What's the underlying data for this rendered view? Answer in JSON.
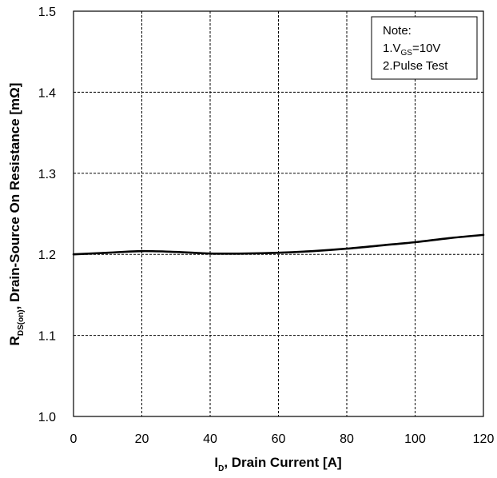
{
  "chart_data": {
    "type": "line",
    "xlabel": {
      "main": "I",
      "sub": "D",
      "rest": ", Drain Current [A]"
    },
    "ylabel": {
      "main": "R",
      "sub": "DS(on)",
      "rest": ", Drain-Source On Resistance [mΩ]"
    },
    "xlim": [
      0,
      120
    ],
    "ylim": [
      1.0,
      1.5
    ],
    "xticks": [
      0,
      20,
      40,
      60,
      80,
      100,
      120
    ],
    "yticks": [
      "1.0",
      "1.1",
      "1.2",
      "1.3",
      "1.4",
      "1.5"
    ],
    "grid": true,
    "grid_style": "dashed",
    "series": [
      {
        "x": [
          0,
          10,
          20,
          30,
          40,
          50,
          60,
          70,
          80,
          90,
          100,
          110,
          120
        ],
        "y": [
          1.2,
          1.202,
          1.204,
          1.203,
          1.201,
          1.201,
          1.202,
          1.204,
          1.207,
          1.211,
          1.215,
          1.22,
          1.224
        ],
        "color": "#000000"
      }
    ],
    "annotation": {
      "lines": [
        {
          "text": "Note:"
        },
        {
          "main": "1.V",
          "sub": "GS",
          "rest": "=10V"
        },
        {
          "text": "2.Pulse Test"
        }
      ],
      "placement": "top-right"
    }
  }
}
